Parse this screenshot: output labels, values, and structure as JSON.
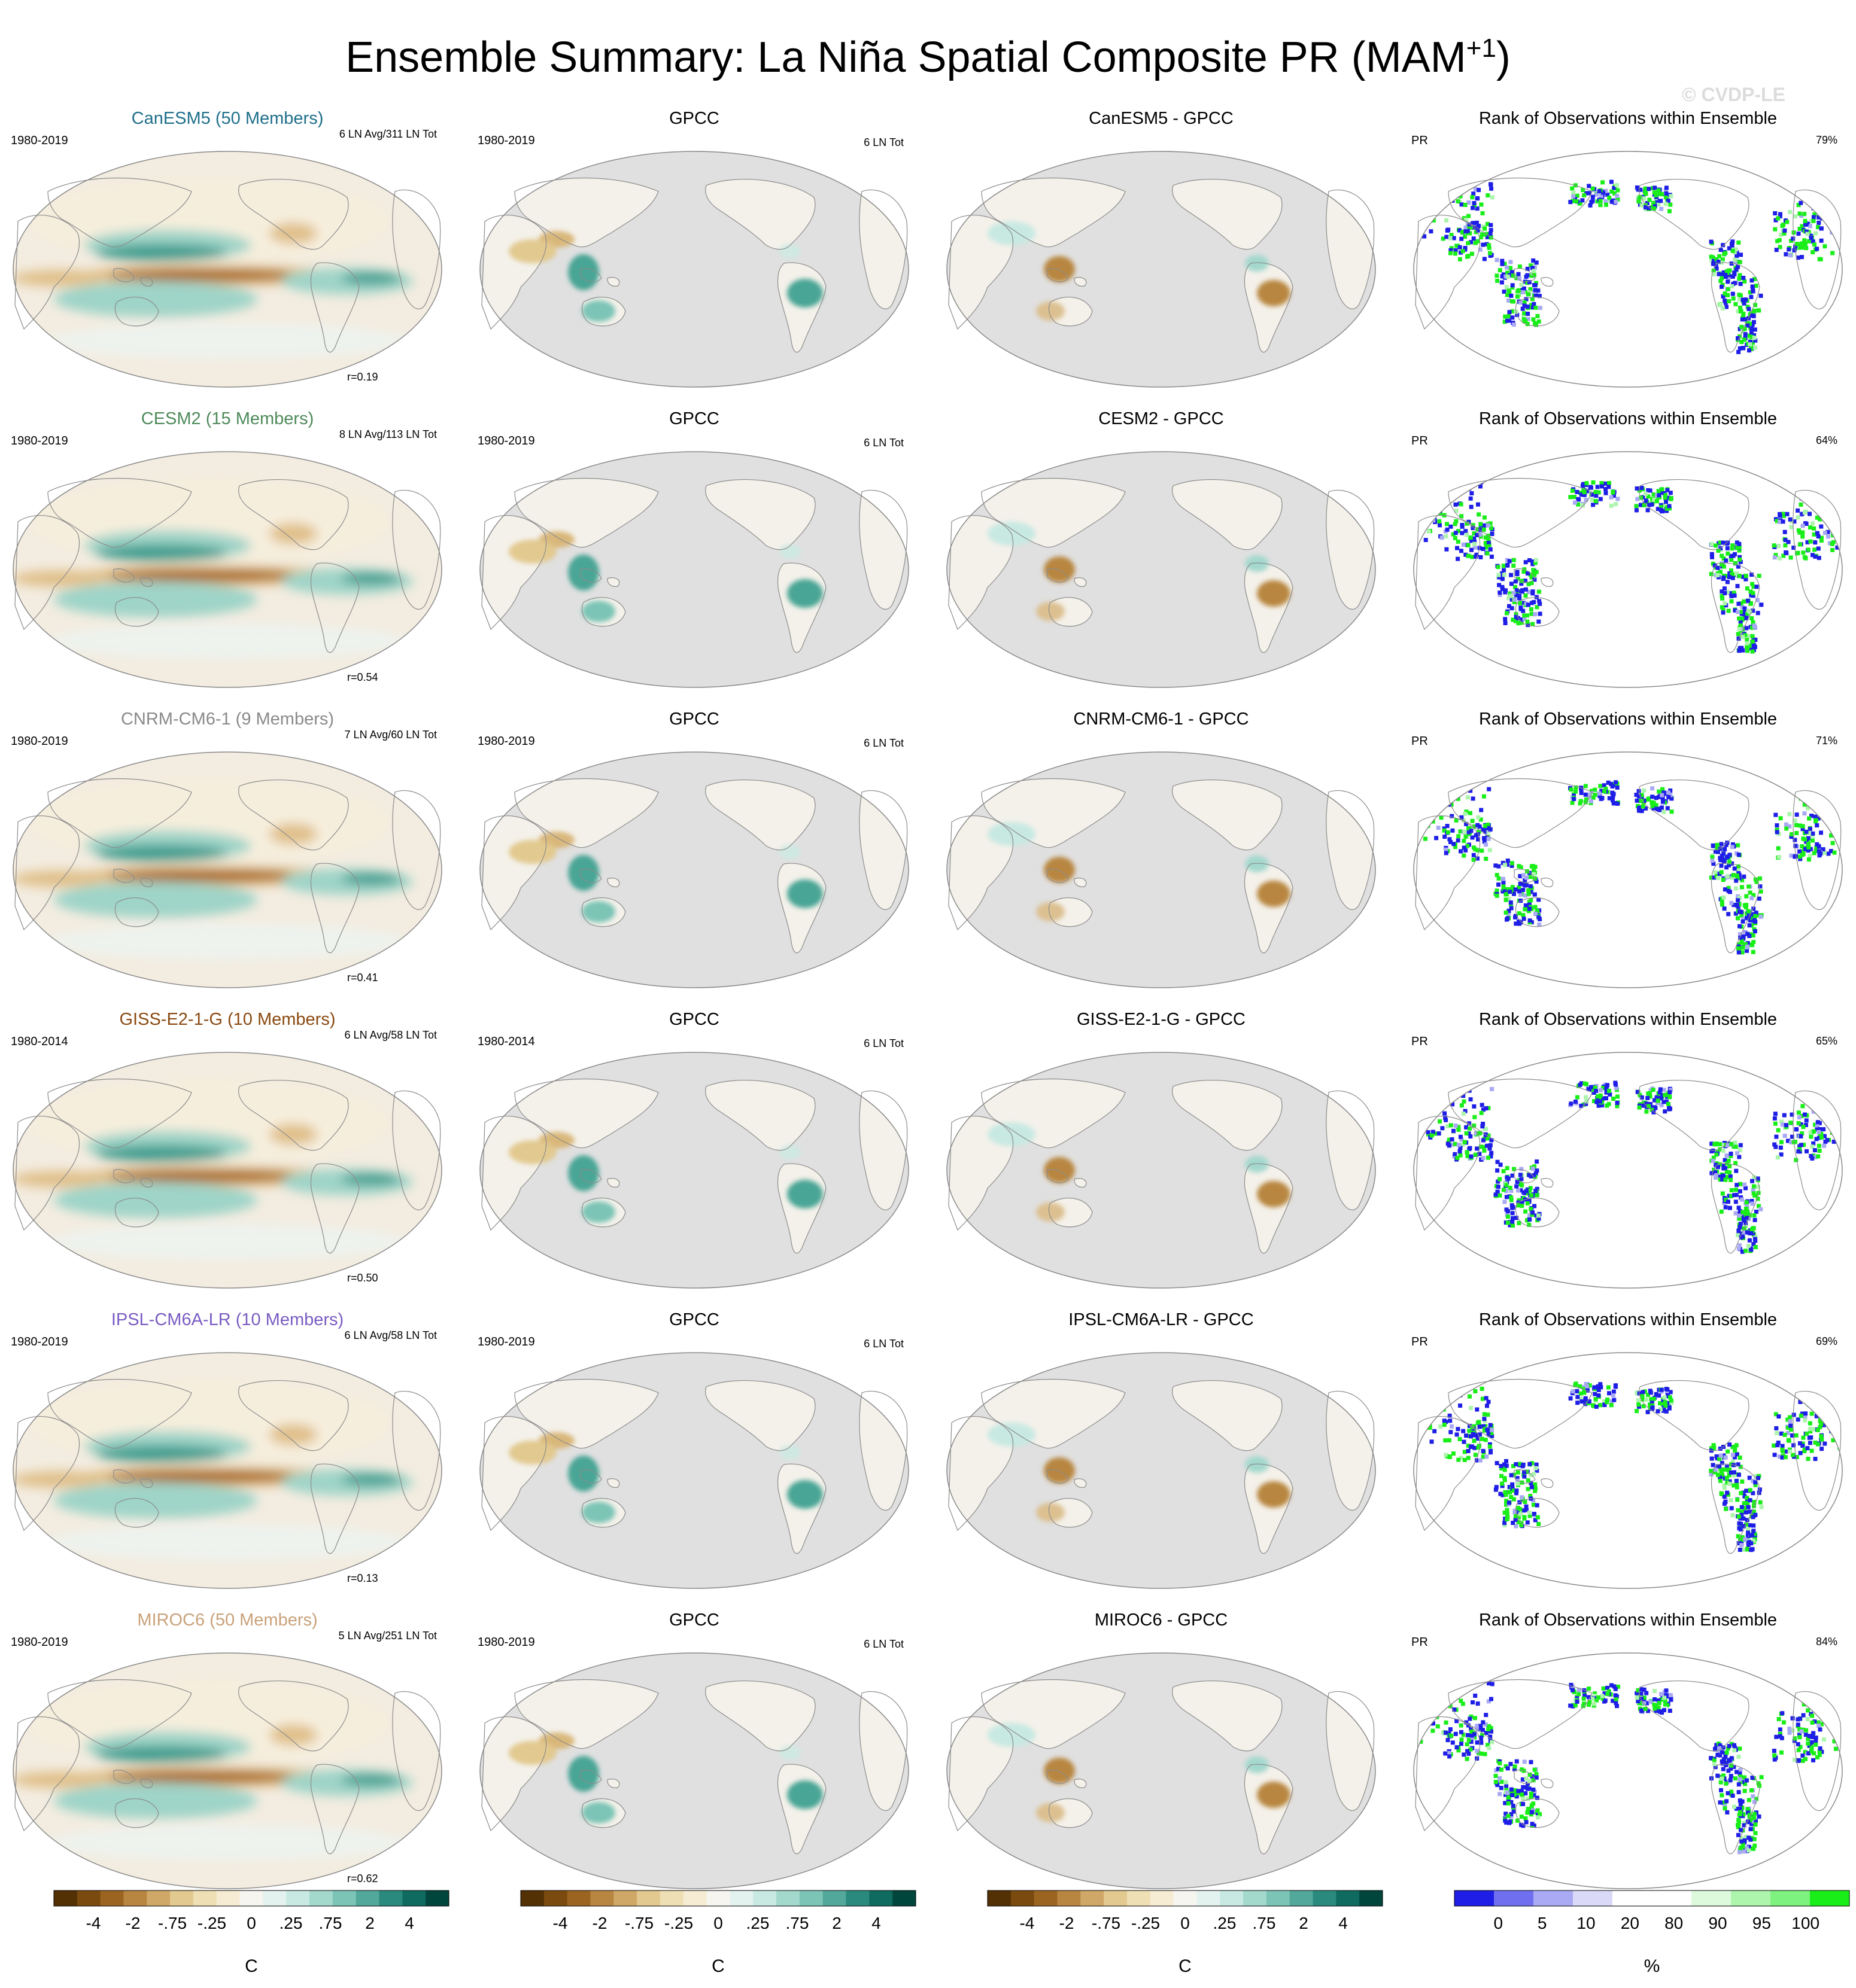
{
  "title": "Ensemble Summary: La Niña Spatial Composite PR (MAM",
  "title_sup": "+1",
  "title_end": ")",
  "watermark": "© CVDP-LE",
  "col_obs_title": "GPCC",
  "col_rank_title": "Rank of Observations within Ensemble",
  "obs_right_label": "6 LN Tot",
  "rank_left_label": "PR",
  "rows": [
    {
      "model_title": "CanESM5 (50 Members)",
      "model_color": "#1f6f8b",
      "years": "1980-2019",
      "ln_label": "6 LN Avg/311 LN Tot",
      "r": "r=0.19",
      "diff_title": "CanESM5 - GPCC",
      "rank_pct": "79%"
    },
    {
      "model_title": "CESM2 (15 Members)",
      "model_color": "#4f8a5b",
      "years": "1980-2019",
      "ln_label": "8 LN Avg/113 LN Tot",
      "r": "r=0.54",
      "diff_title": "CESM2 - GPCC",
      "rank_pct": "64%"
    },
    {
      "model_title": "CNRM-CM6-1 (9 Members)",
      "model_color": "#8a8a8a",
      "years": "1980-2019",
      "ln_label": "7 LN Avg/60 LN Tot",
      "r": "r=0.41",
      "diff_title": "CNRM-CM6-1 - GPCC",
      "rank_pct": "71%"
    },
    {
      "model_title": "GISS-E2-1-G (10 Members)",
      "model_color": "#8b4a12",
      "years": "1980-2014",
      "ln_label": "6 LN Avg/58 LN Tot",
      "r": "r=0.50",
      "diff_title": "GISS-E2-1-G - GPCC",
      "rank_pct": "65%"
    },
    {
      "model_title": "IPSL-CM6A-LR (10 Members)",
      "model_color": "#7a5cc2",
      "years": "1980-2019",
      "ln_label": "6 LN Avg/58 LN Tot",
      "r": "r=0.13",
      "diff_title": "IPSL-CM6A-LR - GPCC",
      "rank_pct": "69%"
    },
    {
      "model_title": "MIROC6 (50 Members)",
      "model_color": "#c9a27a",
      "years": "1980-2019",
      "ln_label": "5 LN Avg/251 LN Tot",
      "r": "r=0.62",
      "diff_title": "MIROC6 - GPCC",
      "rank_pct": "84%"
    }
  ],
  "colorbars": {
    "brbg": {
      "colors": [
        "#543005",
        "#7a4a0f",
        "#9b6420",
        "#b88640",
        "#cfa868",
        "#e2c98f",
        "#efdfb4",
        "#f6ecd4",
        "#f7f5ef",
        "#e4f2ef",
        "#c7e9e2",
        "#a3d8cd",
        "#7cc4b6",
        "#52a89a",
        "#2a8a7e",
        "#0f6b60",
        "#01463c"
      ],
      "labels": [
        "-4",
        "-2",
        "-.75",
        "-.25",
        "0",
        ".25",
        ".75",
        "2",
        "4"
      ],
      "unit": "C"
    },
    "rank": {
      "colors": [
        "#1e1ee6",
        "#6f6ff0",
        "#a9a9f4",
        "#dadaf8",
        "#ffffff",
        "#ffffff",
        "#ddfadd",
        "#adf5ad",
        "#7ef27e",
        "#19ee19"
      ],
      "labels": [
        "0",
        "5",
        "10",
        "20",
        "80",
        "90",
        "95",
        "100"
      ],
      "unit": "%"
    }
  }
}
